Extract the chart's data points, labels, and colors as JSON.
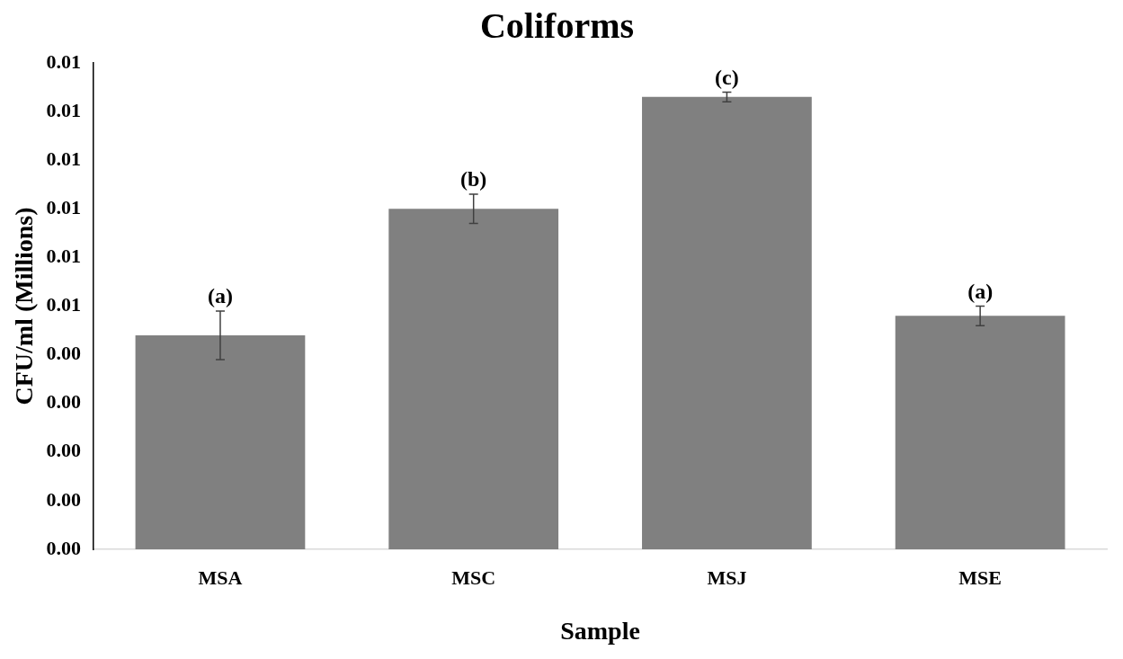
{
  "chart_data": {
    "type": "bar",
    "title": "Coliforms",
    "xlabel": "Sample",
    "ylabel": "CFU/ml (Millions)",
    "categories": [
      "MSA",
      "MSC",
      "MSJ",
      "MSE"
    ],
    "values": [
      0.0044,
      0.007,
      0.0093,
      0.0048
    ],
    "errors": [
      0.0005,
      0.0003,
      0.0001,
      0.0002
    ],
    "color": "#808080",
    "ylim": [
      0,
      0.01
    ],
    "yticks": [
      {
        "value": 0,
        "label": "0.00"
      },
      {
        "value": 0.001,
        "label": "0.00"
      },
      {
        "value": 0.002,
        "label": "0.00"
      },
      {
        "value": 0.003,
        "label": "0.00"
      },
      {
        "value": 0.004,
        "label": "0.00"
      },
      {
        "value": 0.005,
        "label": "0.01"
      },
      {
        "value": 0.006,
        "label": "0.01"
      },
      {
        "value": 0.007,
        "label": "0.01"
      },
      {
        "value": 0.008,
        "label": "0.01"
      },
      {
        "value": 0.009,
        "label": "0.01"
      },
      {
        "value": 0.01,
        "label": "0.01"
      }
    ],
    "annotations": [
      {
        "text": "(a)",
        "x": "MSA",
        "y": 0.0049
      },
      {
        "text": "(b)",
        "x": "MSC",
        "y": 0.0073
      },
      {
        "text": "(c)",
        "x": "MSJ",
        "y": 0.0094
      },
      {
        "text": "(a)",
        "x": "MSE",
        "y": 0.005
      }
    ],
    "grid": false,
    "legend": false
  }
}
